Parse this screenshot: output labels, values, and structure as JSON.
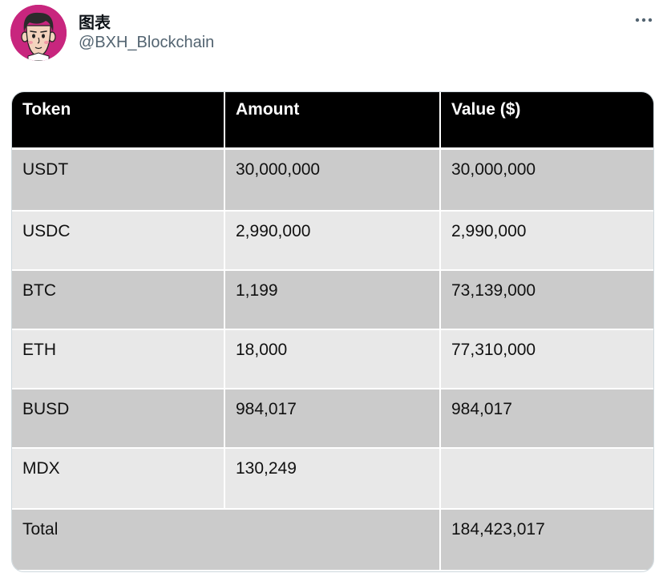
{
  "tweet": {
    "author_name": "图表",
    "author_handle": "@BXH_Blockchain",
    "more_icon": "more-horizontal-icon"
  },
  "table": {
    "headers": [
      "Token",
      "Amount",
      "Value ($)"
    ],
    "rows": [
      {
        "token": "USDT",
        "amount": "30,000,000",
        "value": "30,000,000"
      },
      {
        "token": "USDC",
        "amount": "2,990,000",
        "value": "2,990,000"
      },
      {
        "token": "BTC",
        "amount": "1,199",
        "value": "73,139,000"
      },
      {
        "token": "ETH",
        "amount": "18,000",
        "value": "77,310,000"
      },
      {
        "token": "BUSD",
        "amount": "984,017",
        "value": "984,017"
      },
      {
        "token": "MDX",
        "amount": "130,249",
        "value": ""
      }
    ],
    "total": {
      "label": "Total",
      "value": "184,423,017"
    }
  },
  "colors": {
    "header_bg": "#000000",
    "row_dark": "#cbcbcb",
    "row_light": "#e8e8e8",
    "avatar_bg": "#c8267e"
  }
}
